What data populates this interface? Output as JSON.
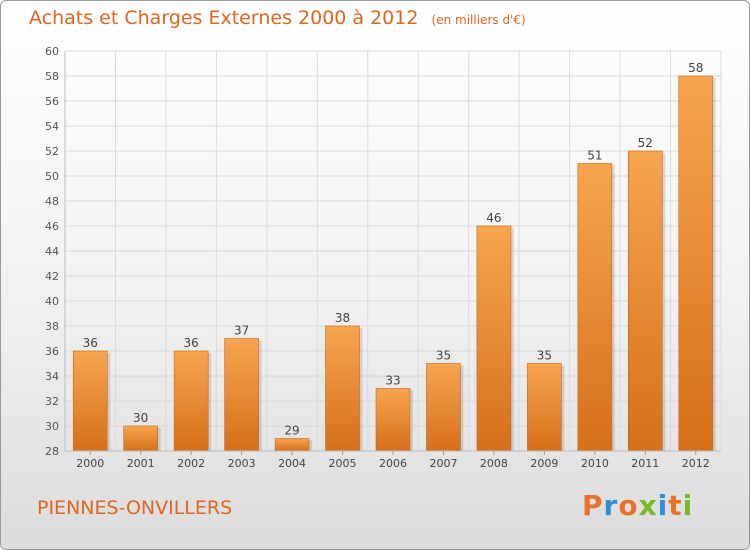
{
  "header": {
    "title": "Achats et Charges Externes 2000 à 2012",
    "subtitle": "(en milliers d'€)"
  },
  "footer": {
    "city": "PIENNES-ONVILLERS",
    "brand": "Proxiti"
  },
  "colors": {
    "accent": "#e0651f",
    "bar_light": "#f7a54f",
    "bar_dark": "#d66f1a",
    "grid": "#dadada"
  },
  "logo_letter_colors": [
    "#e8712a",
    "#2d8fd4",
    "#e8712a",
    "#76b82a",
    "#2d8fd4",
    "#e8712a",
    "#76b82a"
  ],
  "chart_data": {
    "type": "bar",
    "title": "Achats et Charges Externes 2000 à 2012",
    "subtitle": "(en milliers d'€)",
    "categories": [
      "2000",
      "2001",
      "2002",
      "2003",
      "2004",
      "2005",
      "2006",
      "2007",
      "2008",
      "2009",
      "2010",
      "2011",
      "2012"
    ],
    "values": [
      36,
      30,
      36,
      37,
      29,
      38,
      33,
      35,
      46,
      35,
      51,
      52,
      58
    ],
    "ylim": [
      28,
      60
    ],
    "yticks": [
      28,
      30,
      32,
      34,
      36,
      38,
      40,
      42,
      44,
      46,
      48,
      50,
      52,
      54,
      56,
      58,
      60
    ],
    "grid": true,
    "data_labels": true
  }
}
